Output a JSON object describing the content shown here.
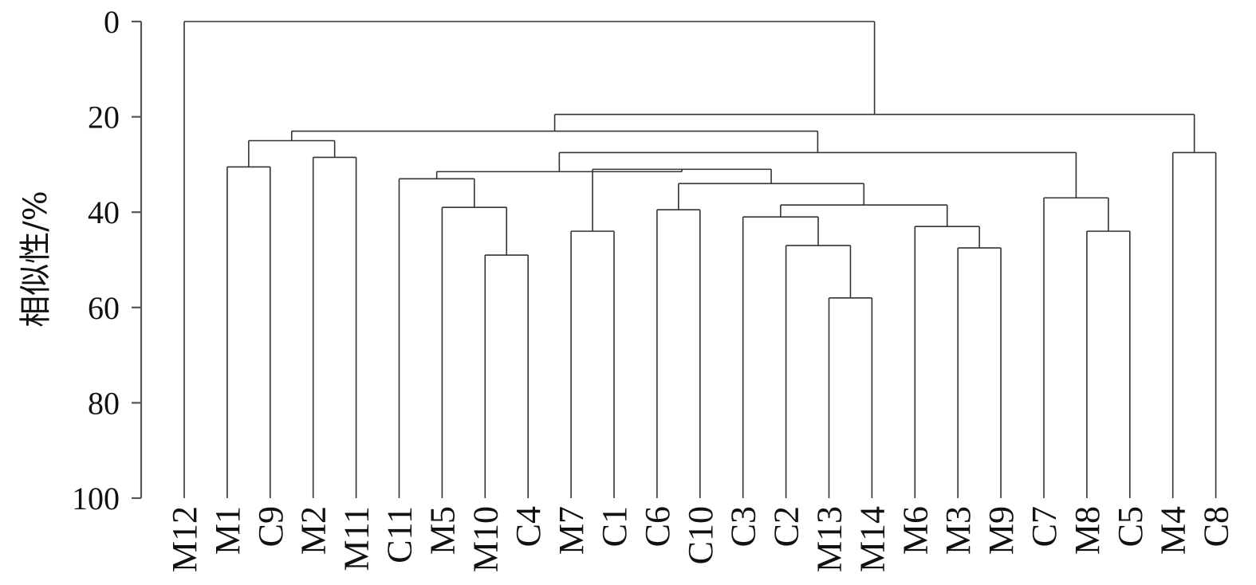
{
  "chart_data": {
    "type": "dendrogram",
    "ylabel": "相似性/%",
    "y_ticks": [
      0,
      20,
      40,
      60,
      80,
      100
    ],
    "ylim": [
      0,
      100
    ],
    "y_direction": "down",
    "leaves": [
      "M12",
      "M1",
      "C9",
      "M2",
      "M11",
      "C11",
      "M5",
      "M10",
      "C4",
      "M7",
      "C1",
      "C6",
      "C10",
      "C3",
      "C2",
      "M13",
      "M14",
      "M6",
      "M3",
      "M9",
      "C7",
      "M8",
      "C5",
      "M4",
      "C8"
    ],
    "merges": [
      {
        "id": "m_m1_c9",
        "children": [
          "M1",
          "C9"
        ],
        "similarity": 30.5
      },
      {
        "id": "m_m2_m11",
        "children": [
          "M2",
          "M11"
        ],
        "similarity": 28.5
      },
      {
        "id": "m_g1",
        "children": [
          "m_m1_c9",
          "m_m2_m11"
        ],
        "similarity": 25
      },
      {
        "id": "m_m10_c4",
        "children": [
          "M10",
          "C4"
        ],
        "similarity": 49
      },
      {
        "id": "m_m5",
        "children": [
          "M5",
          "m_m10_c4"
        ],
        "similarity": 39
      },
      {
        "id": "m_c11",
        "children": [
          "C11",
          "m_m5"
        ],
        "similarity": 33
      },
      {
        "id": "m_m7_c1",
        "children": [
          "M7",
          "C1"
        ],
        "similarity": 44
      },
      {
        "id": "m_c6_c10",
        "children": [
          "C6",
          "C10"
        ],
        "similarity": 39.5
      },
      {
        "id": "m_m13_m14",
        "children": [
          "M13",
          "M14"
        ],
        "similarity": 58
      },
      {
        "id": "m_c2",
        "children": [
          "C2",
          "m_m13_m14"
        ],
        "similarity": 47
      },
      {
        "id": "m_c3",
        "children": [
          "C3",
          "m_c2"
        ],
        "similarity": 41
      },
      {
        "id": "m_m3_m9",
        "children": [
          "M3",
          "M9"
        ],
        "similarity": 47.5
      },
      {
        "id": "m_m6",
        "children": [
          "M6",
          "m_m3_m9"
        ],
        "similarity": 43
      },
      {
        "id": "m_c3m6",
        "children": [
          "m_c3",
          "m_m6"
        ],
        "similarity": 38.5
      },
      {
        "id": "m_c6grp",
        "children": [
          "m_c6_c10",
          "m_c3m6"
        ],
        "similarity": 34
      },
      {
        "id": "m_m7grp",
        "children": [
          "m_m7_c1",
          "m_c6grp"
        ],
        "similarity": 31
      },
      {
        "id": "m_c11grp",
        "children": [
          "m_c11",
          "m_m7grp"
        ],
        "similarity": 31.5
      },
      {
        "id": "m_m8_c5",
        "children": [
          "M8",
          "C5"
        ],
        "similarity": 44
      },
      {
        "id": "m_c7",
        "children": [
          "C7",
          "m_m8_c5"
        ],
        "similarity": 37
      },
      {
        "id": "m_bigmid",
        "children": [
          "m_c11grp",
          "m_c7"
        ],
        "similarity": 27.5
      },
      {
        "id": "m_g2",
        "children": [
          "m_g1",
          "m_bigmid"
        ],
        "similarity": 23
      },
      {
        "id": "m_m4_c8",
        "children": [
          "M4",
          "C8"
        ],
        "similarity": 27.5
      },
      {
        "id": "m_g3",
        "children": [
          "m_g2",
          "m_m4_c8"
        ],
        "similarity": 19.5
      },
      {
        "id": "m_root",
        "children": [
          "M12",
          "m_g3"
        ],
        "similarity": 0
      }
    ]
  }
}
